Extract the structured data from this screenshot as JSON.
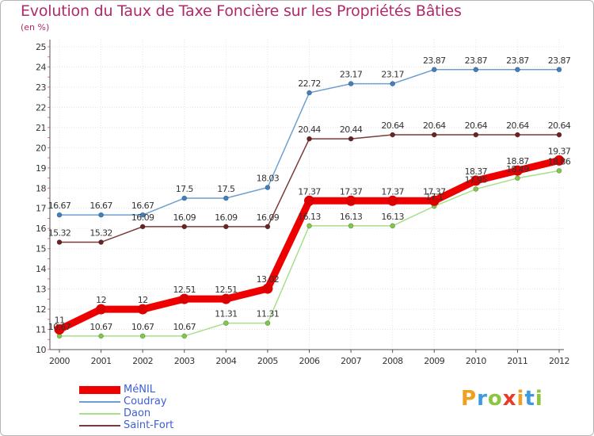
{
  "header": {
    "title": "Evolution du Taux de Taxe Foncière sur les Propriétés Bâties",
    "unit": "(en %)"
  },
  "chart_data": {
    "type": "line",
    "title": "Evolution du Taux de Taxe Foncière sur les Propriétés Bâties",
    "ylabel": "(en %)",
    "xlabel": "",
    "ylim": [
      10,
      25
    ],
    "yticks": [
      10,
      11,
      12,
      13,
      14,
      15,
      16,
      17,
      18,
      19,
      20,
      21,
      22,
      23,
      24,
      25
    ],
    "grid": true,
    "categories": [
      "2000",
      "2001",
      "2002",
      "2003",
      "2004",
      "2005",
      "2006",
      "2007",
      "2008",
      "2009",
      "2010",
      "2011",
      "2012"
    ],
    "series": [
      {
        "name": "Coudray",
        "color": "#6f9fd0",
        "marker": "#3f7fc0",
        "values": [
          16.67,
          16.67,
          16.67,
          17.5,
          17.5,
          18.03,
          22.72,
          23.17,
          23.17,
          23.87,
          23.87,
          23.87,
          23.87
        ],
        "labels": [
          "16.67",
          "16.67",
          "16.67",
          "17.5",
          "17.5",
          "18.03",
          "22.72",
          "23.17",
          "23.17",
          "23.87",
          "23.87",
          "23.87",
          "23.87"
        ]
      },
      {
        "name": "Saint-Fort",
        "color": "#7a3b3b",
        "marker": "#6a2222",
        "values": [
          15.32,
          15.32,
          16.09,
          16.09,
          16.09,
          16.09,
          20.44,
          20.44,
          20.64,
          20.64,
          20.64,
          20.64,
          20.64
        ],
        "labels": [
          "15.32",
          "15.32",
          "16.09",
          "16.09",
          "16.09",
          "16.09",
          "20.44",
          "20.44",
          "20.64",
          "20.64",
          "20.64",
          "20.64",
          "20.64"
        ]
      },
      {
        "name": "Daon",
        "color": "#a8df8a",
        "marker": "#7fc94a",
        "values": [
          10.67,
          10.67,
          10.67,
          10.67,
          11.31,
          11.31,
          16.13,
          16.13,
          16.13,
          17.1,
          17.95,
          18.49,
          18.86
        ],
        "labels": [
          "10.67",
          "10.67",
          "10.67",
          "10.67",
          "11.31",
          "11.31",
          "16.13",
          "16.13",
          "16.13",
          "17.1",
          "17.95",
          "18.49",
          "18.86"
        ]
      },
      {
        "name": "MéNIL",
        "color": "#ee0000",
        "marker": "#dd0000",
        "values": [
          11,
          12,
          12,
          12.51,
          12.51,
          13.02,
          17.37,
          17.37,
          17.37,
          17.37,
          18.37,
          18.87,
          19.37
        ],
        "labels": [
          "11",
          "12",
          "12",
          "12.51",
          "12.51",
          "13.02",
          "17.37",
          "17.37",
          "17.37",
          "17.37",
          "18.37",
          "18.87",
          "19.37"
        ]
      }
    ]
  },
  "legend": {
    "items": [
      {
        "label": "MéNIL",
        "color": "#ee0000"
      },
      {
        "label": "Coudray",
        "color": "#6f9fd0"
      },
      {
        "label": "Daon",
        "color": "#a8df8a"
      },
      {
        "label": "Saint-Fort",
        "color": "#7a3b3b"
      }
    ]
  },
  "logo": {
    "letters": [
      "P",
      "r",
      "o",
      "x",
      "i",
      "t",
      "i"
    ],
    "colors": [
      "#f0a020",
      "#3c9be0",
      "#8cc63f",
      "#e83a2a",
      "#f0a020",
      "#3c9be0",
      "#8cc63f"
    ]
  }
}
